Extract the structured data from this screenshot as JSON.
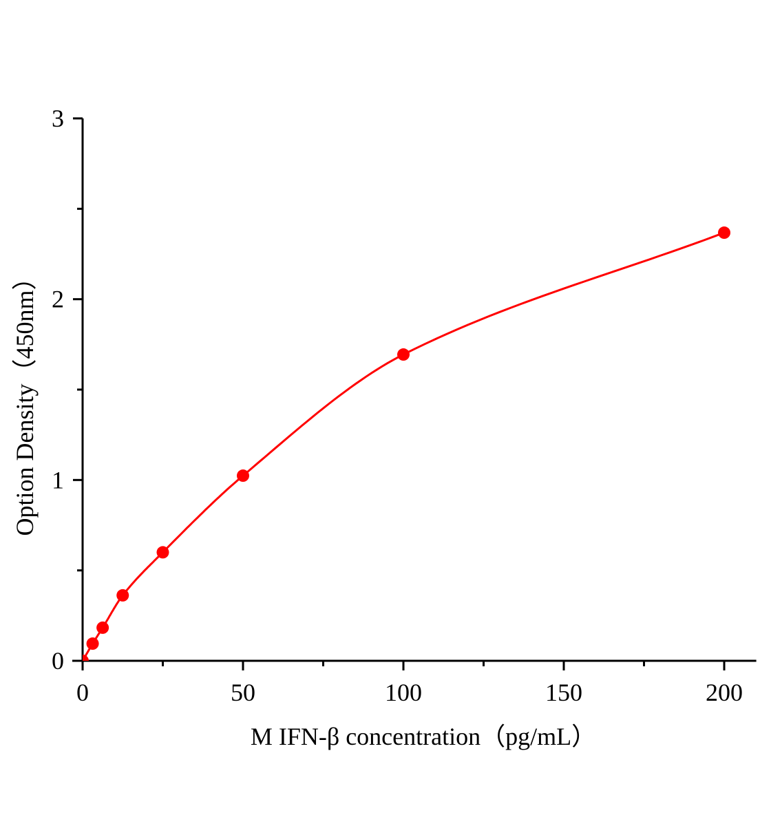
{
  "chart_data": {
    "type": "scatter",
    "title": "",
    "xlabel": "M IFN-β concentration（pg/mL）",
    "ylabel": "Option Density（450nm）",
    "xlim": [
      0,
      210
    ],
    "ylim": [
      0,
      3
    ],
    "x_ticks": [
      0,
      50,
      100,
      150,
      200
    ],
    "x_tick_labels": [
      "0",
      "50",
      "100",
      "150",
      "200"
    ],
    "x_minor_ticks": [
      25,
      75,
      125,
      175
    ],
    "y_ticks": [
      0,
      1,
      2,
      3
    ],
    "y_tick_labels": [
      "0",
      "1",
      "2",
      "3"
    ],
    "y_minor_ticks": [
      0.5,
      1.5,
      2.5
    ],
    "grid": false,
    "legend": "none",
    "color": "#ff0000",
    "series": [
      {
        "x": [
          0,
          3.125,
          6.25,
          12.5,
          25,
          50,
          100,
          200
        ],
        "y": [
          0.0,
          0.095,
          0.183,
          0.362,
          0.6,
          1.024,
          1.694,
          2.368
        ],
        "fit_line": true
      }
    ]
  }
}
